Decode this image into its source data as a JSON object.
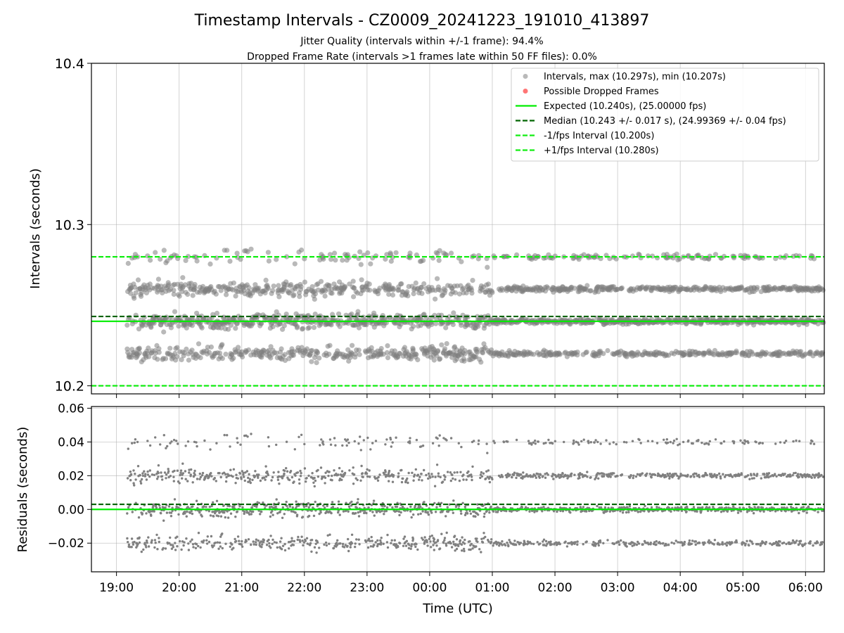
{
  "chart_data": [
    {
      "type": "scatter",
      "title": "Timestamp Intervals - CZ0009_20241223_191010_413897",
      "subtitle_lines": [
        "Jitter Quality (intervals within +/-1 frame): 94.4%",
        "Dropped Frame Rate (intervals >1 frames late within 50 FF files): 0.0%"
      ],
      "xlabel": "",
      "ylabel": "Intervals (seconds)",
      "ylim": [
        10.195,
        10.4
      ],
      "yticks": [
        "10.2",
        "10.3",
        "10.4"
      ],
      "xlim_hours": [
        18.6,
        30.3
      ],
      "grid": true,
      "legend_position": "top-right",
      "legend": [
        "Intervals, max (10.297s), min (10.207s)",
        "Possible Dropped Frames",
        "Expected (10.240s), (25.00000 fps)",
        "Median (10.243 +/- 0.017 s), (24.99369 +/- 0.04 fps)",
        "-1/fps Interval (10.200s)",
        "+1/fps Interval (10.280s)"
      ],
      "reference_lines": {
        "expected": 10.24,
        "median": 10.243,
        "minus_one_fps": 10.2,
        "plus_one_fps": 10.28
      },
      "data_range": {
        "x_start": "19:10",
        "x_end": "06:17",
        "y_max": 10.297,
        "y_min": 10.207
      },
      "clusters": [
        10.22,
        10.24,
        10.26,
        10.28
      ],
      "dropped_frames": []
    },
    {
      "type": "scatter",
      "title": "",
      "xlabel": "Time (UTC)",
      "ylabel": "Residuals (seconds)",
      "ylim": [
        -0.037,
        0.061
      ],
      "yticks": [
        "0.06",
        "0.04",
        "0.02",
        "0.00",
        "−0.02"
      ],
      "xticks": [
        "19:00",
        "20:00",
        "21:00",
        "22:00",
        "23:00",
        "00:00",
        "01:00",
        "02:00",
        "03:00",
        "04:00",
        "05:00",
        "06:00"
      ],
      "reference_lines": {
        "expected": 0.0,
        "median": 0.003
      },
      "clusters": [
        -0.02,
        0.0,
        0.02,
        0.04
      ],
      "grid": true
    }
  ],
  "colors": {
    "points": "#808080",
    "dropped": "#ff6666",
    "expected": "#00ee00",
    "median": "#006400",
    "fps_interval": "#11ee11"
  }
}
